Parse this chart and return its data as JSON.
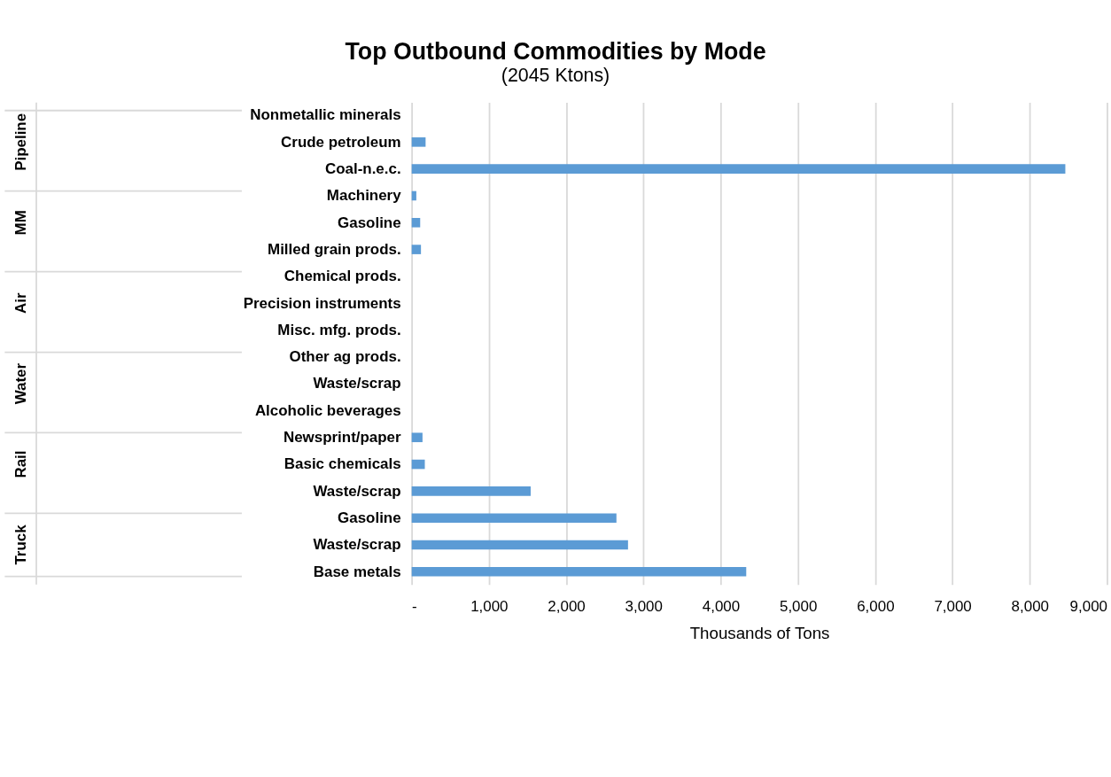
{
  "chart_data": {
    "type": "bar",
    "orientation": "horizontal",
    "title": "Top Outbound Commodities by Mode",
    "subtitle": "(2045 Ktons)",
    "xlabel": "Thousands of Tons",
    "categories": [
      "Nonmetallic minerals",
      "Crude petroleum",
      "Coal-n.e.c.",
      "Machinery",
      "Gasoline",
      "Milled grain prods.",
      "Chemical prods.",
      "Precision instruments",
      "Misc. mfg. prods.",
      "Other ag prods.",
      "Waste/scrap",
      "Alcoholic beverages",
      "Newsprint/paper",
      "Basic chemicals",
      "Waste/scrap",
      "Gasoline",
      "Waste/scrap",
      "Base metals"
    ],
    "values": [
      0,
      180,
      8460,
      60,
      110,
      120,
      0,
      0,
      0,
      0,
      0,
      0,
      140,
      170,
      1540,
      2650,
      2800,
      4330
    ],
    "color": "#5b9bd5",
    "xlim": [
      0,
      9000
    ],
    "xticks": [
      {
        "value": 0,
        "label": "-"
      },
      {
        "value": 1000,
        "label": "1,000"
      },
      {
        "value": 2000,
        "label": "2,000"
      },
      {
        "value": 3000,
        "label": "3,000"
      },
      {
        "value": 4000,
        "label": "4,000"
      },
      {
        "value": 5000,
        "label": "5,000"
      },
      {
        "value": 6000,
        "label": "6,000"
      },
      {
        "value": 7000,
        "label": "7,000"
      },
      {
        "value": 8000,
        "label": "8,000"
      },
      {
        "value": 9000,
        "label": "9,000"
      }
    ],
    "grid": "x",
    "annotations": [
      "Pipeline",
      "MM",
      "Air",
      "Water",
      "Rail",
      "Truck"
    ]
  }
}
